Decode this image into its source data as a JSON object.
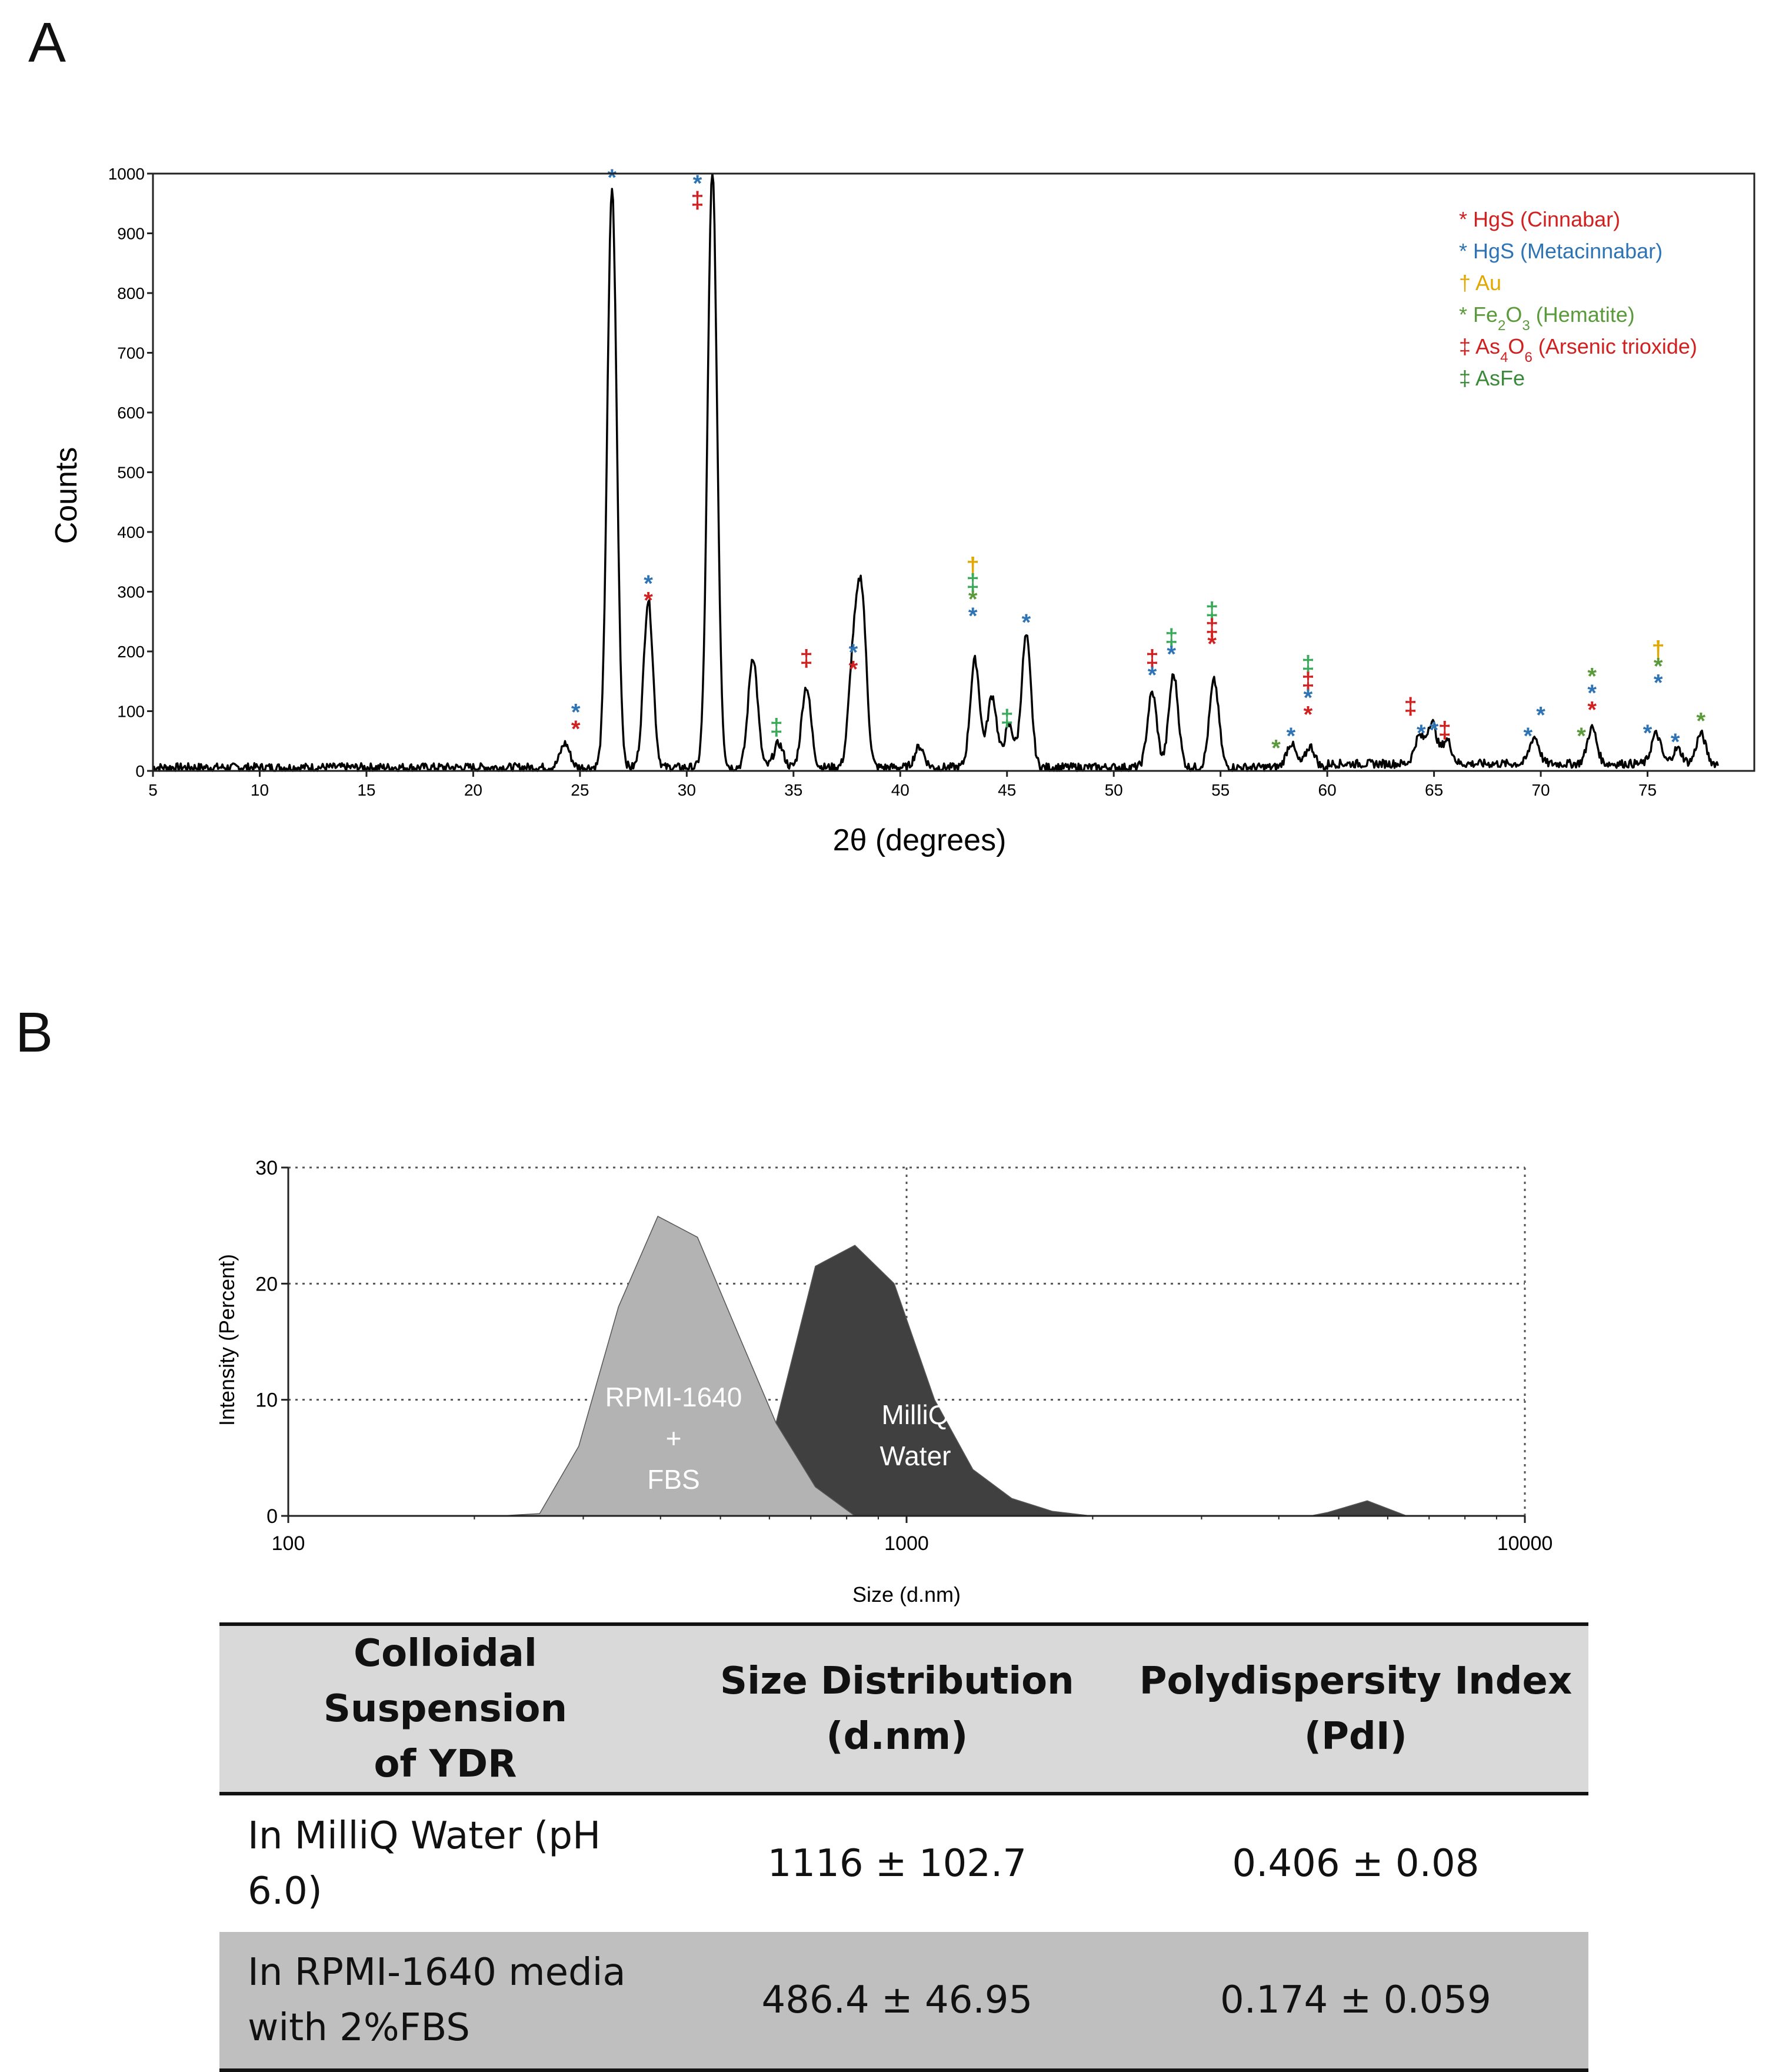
{
  "panels": {
    "a": "A",
    "b": "B"
  },
  "chart_data": [
    {
      "type": "line",
      "title": "",
      "xlabel": "2θ (degrees)",
      "ylabel": "Counts",
      "xlim": [
        5,
        80
      ],
      "ylim": [
        0,
        1000
      ],
      "x_ticks": [
        5,
        10,
        15,
        20,
        25,
        30,
        35,
        40,
        45,
        50,
        55,
        60,
        65,
        70,
        75
      ],
      "y_ticks": [
        0,
        100,
        200,
        300,
        400,
        500,
        600,
        700,
        800,
        900,
        1000
      ],
      "grid": false,
      "peaks": [
        {
          "x": 24.3,
          "y": 40
        },
        {
          "x": 26.5,
          "y": 970
        },
        {
          "x": 28.2,
          "y": 280
        },
        {
          "x": 31.2,
          "y": 1000
        },
        {
          "x": 33.1,
          "y": 185
        },
        {
          "x": 34.3,
          "y": 40
        },
        {
          "x": 35.6,
          "y": 135
        },
        {
          "x": 37.8,
          "y": 175
        },
        {
          "x": 38.2,
          "y": 275
        },
        {
          "x": 40.9,
          "y": 35
        },
        {
          "x": 43.5,
          "y": 180
        },
        {
          "x": 44.3,
          "y": 120
        },
        {
          "x": 45.1,
          "y": 70
        },
        {
          "x": 45.9,
          "y": 220
        },
        {
          "x": 51.8,
          "y": 125
        },
        {
          "x": 52.8,
          "y": 155
        },
        {
          "x": 54.7,
          "y": 145
        },
        {
          "x": 58.3,
          "y": 40
        },
        {
          "x": 59.2,
          "y": 35
        },
        {
          "x": 64.3,
          "y": 45
        },
        {
          "x": 64.9,
          "y": 70
        },
        {
          "x": 65.6,
          "y": 40
        },
        {
          "x": 69.7,
          "y": 45
        },
        {
          "x": 72.4,
          "y": 60
        },
        {
          "x": 75.4,
          "y": 50
        },
        {
          "x": 76.4,
          "y": 25
        },
        {
          "x": 77.5,
          "y": 50
        }
      ],
      "legend": {
        "position": "top-right",
        "entries": [
          {
            "marker": "*",
            "label": "HgS (Cinnabar)",
            "color": "#d02020"
          },
          {
            "marker": "*",
            "label": "HgS (Metacinnabar)",
            "color": "#2e74b5"
          },
          {
            "marker": "†",
            "label": "Au",
            "color": "#e0a800"
          },
          {
            "marker": "*",
            "label": "Fe2O3 (Hematite)",
            "color": "#5a9a3a",
            "parts": [
              "Fe",
              "2",
              "O",
              "3",
              " (Hematite)"
            ]
          },
          {
            "marker": "‡",
            "label": "As4O6 (Arsenic trioxide)",
            "color": "#d02020",
            "parts": [
              "As",
              "4",
              "O",
              "6",
              " (Arsenic trioxide)"
            ]
          },
          {
            "marker": "‡",
            "label": "AsFe",
            "color": "#3a8a3a"
          }
        ]
      },
      "annotations": [
        {
          "x": 24.8,
          "stack": [
            {
              "m": "*",
              "c": "#2e74b5"
            },
            {
              "m": "*",
              "c": "#d02020"
            }
          ],
          "top": 105
        },
        {
          "x": 26.5,
          "stack": [
            {
              "m": "*",
              "c": "#2e74b5"
            }
          ],
          "top": 1000
        },
        {
          "x": 28.2,
          "stack": [
            {
              "m": "*",
              "c": "#2e74b5"
            },
            {
              "m": "*",
              "c": "#d02020"
            }
          ],
          "top": 320
        },
        {
          "x": 30.5,
          "stack": [
            {
              "m": "*",
              "c": "#2e74b5"
            },
            {
              "m": "‡",
              "c": "#d02020"
            }
          ],
          "top": 990
        },
        {
          "x": 34.2,
          "stack": [
            {
              "m": "‡",
              "c": "#3aaa5a"
            }
          ],
          "top": 80
        },
        {
          "x": 35.6,
          "stack": [
            {
              "m": "‡",
              "c": "#d02020"
            }
          ],
          "top": 195
        },
        {
          "x": 37.8,
          "stack": [
            {
              "m": "*",
              "c": "#2e74b5"
            },
            {
              "m": "*",
              "c": "#d02020"
            }
          ],
          "top": 205
        },
        {
          "x": 43.4,
          "stack": [
            {
              "m": "†",
              "c": "#e0a800"
            },
            {
              "m": "‡",
              "c": "#3aaa5a"
            },
            {
              "m": "*",
              "c": "#5a9a3a"
            },
            {
              "m": "*",
              "c": "#2e74b5"
            }
          ],
          "top": 350
        },
        {
          "x": 45.0,
          "stack": [
            {
              "m": "‡",
              "c": "#3aaa5a"
            }
          ],
          "top": 95
        },
        {
          "x": 45.9,
          "stack": [
            {
              "m": "*",
              "c": "#2e74b5"
            }
          ],
          "top": 255
        },
        {
          "x": 51.8,
          "stack": [
            {
              "m": "‡",
              "c": "#d02020"
            },
            {
              "m": "*",
              "c": "#2e74b5"
            }
          ],
          "top": 195
        },
        {
          "x": 52.7,
          "stack": [
            {
              "m": "‡",
              "c": "#3aaa5a"
            },
            {
              "m": "*",
              "c": "#2e74b5"
            }
          ],
          "top": 230
        },
        {
          "x": 54.6,
          "stack": [
            {
              "m": "‡",
              "c": "#3aaa5a"
            },
            {
              "m": "‡",
              "c": "#d02020"
            },
            {
              "m": "*",
              "c": "#d02020"
            }
          ],
          "top": 275
        },
        {
          "x": 57.6,
          "stack": [
            {
              "m": "*",
              "c": "#5a9a3a"
            }
          ],
          "top": 45
        },
        {
          "x": 58.3,
          "stack": [
            {
              "m": "*",
              "c": "#2e74b5"
            }
          ],
          "top": 65
        },
        {
          "x": 59.1,
          "stack": [
            {
              "m": "‡",
              "c": "#3aaa5a"
            },
            {
              "m": "‡",
              "c": "#d02020"
            },
            {
              "m": "*",
              "c": "#2e74b5"
            },
            {
              "m": "*",
              "c": "#d02020"
            }
          ],
          "top": 185
        },
        {
          "x": 63.9,
          "stack": [
            {
              "m": "‡",
              "c": "#d02020"
            }
          ],
          "top": 115
        },
        {
          "x": 64.4,
          "stack": [
            {
              "m": "*",
              "c": "#2e74b5"
            }
          ],
          "top": 70
        },
        {
          "x": 65.0,
          "stack": [
            {
              "m": "*",
              "c": "#2e74b5"
            }
          ],
          "top": 75
        },
        {
          "x": 65.5,
          "stack": [
            {
              "m": "‡",
              "c": "#d02020"
            }
          ],
          "top": 75
        },
        {
          "x": 69.4,
          "stack": [
            {
              "m": "*",
              "c": "#2e74b5"
            }
          ],
          "top": 65
        },
        {
          "x": 70.0,
          "stack": [
            {
              "m": "*",
              "c": "#2e74b5"
            }
          ],
          "top": 100
        },
        {
          "x": 71.9,
          "stack": [
            {
              "m": "*",
              "c": "#5a9a3a"
            }
          ],
          "top": 65
        },
        {
          "x": 72.4,
          "stack": [
            {
              "m": "*",
              "c": "#5a9a3a"
            },
            {
              "m": "*",
              "c": "#2e74b5"
            },
            {
              "m": "*",
              "c": "#d02020"
            }
          ],
          "top": 165
        },
        {
          "x": 75.0,
          "stack": [
            {
              "m": "*",
              "c": "#2e74b5"
            }
          ],
          "top": 70
        },
        {
          "x": 75.5,
          "stack": [
            {
              "m": "†",
              "c": "#e0a800"
            },
            {
              "m": "*",
              "c": "#5a9a3a"
            },
            {
              "m": "*",
              "c": "#2e74b5"
            }
          ],
          "top": 210
        },
        {
          "x": 76.3,
          "stack": [
            {
              "m": "*",
              "c": "#2e74b5"
            }
          ],
          "top": 55
        },
        {
          "x": 77.5,
          "stack": [
            {
              "m": "*",
              "c": "#5a9a3a"
            }
          ],
          "top": 90
        }
      ]
    },
    {
      "type": "area",
      "title": "",
      "xlabel": "Size (d.nm)",
      "ylabel": "Intensity (Percent)",
      "xscale": "log",
      "xlim": [
        100,
        10000
      ],
      "ylim": [
        0,
        30
      ],
      "x_ticks": [
        100,
        1000,
        10000
      ],
      "y_ticks": [
        0,
        10,
        20,
        30
      ],
      "grid": true,
      "series": [
        {
          "name": "MilliQ Water",
          "label_lines": [
            "MilliQ",
            "Water"
          ],
          "color": "#404040",
          "points": [
            [
              600,
              0
            ],
            [
              615,
              8
            ],
            [
              712,
              21.5
            ],
            [
              825,
              23.3
            ],
            [
              955,
              20
            ],
            [
              1110,
              10
            ],
            [
              1280,
              4
            ],
            [
              1480,
              1.5
            ],
            [
              1720,
              0.4
            ],
            [
              1990,
              0
            ],
            [
              4500,
              0
            ],
            [
              4800,
              0.3
            ],
            [
              5560,
              1.3
            ],
            [
              6440,
              0
            ],
            [
              10000,
              0
            ]
          ]
        },
        {
          "name": "RPMI-1640 + FBS",
          "label_lines": [
            "RPMI-1640",
            "+",
            "FBS"
          ],
          "color": "#b3b3b3",
          "points": [
            [
              220,
              0
            ],
            [
              255,
              0.2
            ],
            [
              295,
              6
            ],
            [
              342,
              18
            ],
            [
              396,
              25.8
            ],
            [
              459,
              24
            ],
            [
              531,
              16
            ],
            [
              615,
              8
            ],
            [
              712,
              2.5
            ],
            [
              825,
              0
            ]
          ]
        }
      ]
    }
  ],
  "table": {
    "headers": [
      [
        "Colloidal Suspension",
        "of YDR"
      ],
      [
        "Size Distribution",
        "(d.nm)"
      ],
      [
        "Polydispersity Index",
        "(PdI)"
      ]
    ],
    "rows": [
      {
        "sample": [
          "In MilliQ Water (pH",
          "6.0)"
        ],
        "size": "1116 ± 102.7",
        "pdi": "0.406 ± 0.08"
      },
      {
        "sample": [
          "In RPMI-1640 media",
          "with 2%FBS"
        ],
        "size": "486.4 ± 46.95",
        "pdi": "0.174 ± 0.059"
      }
    ]
  }
}
